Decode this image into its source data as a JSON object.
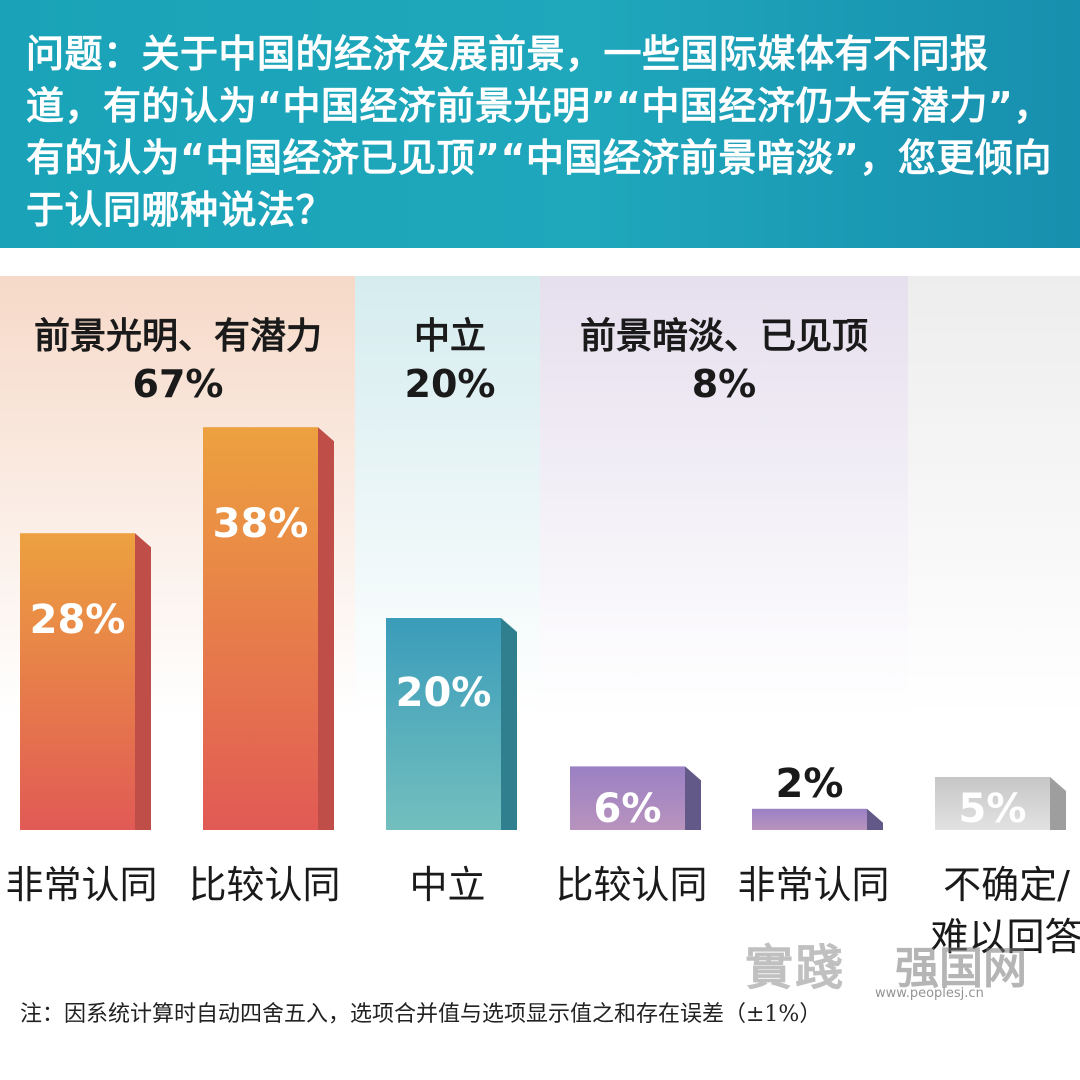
{
  "question": "问题：关于中国的经济发展前景，一些国际媒体有不同报道，有的认为“中国经济前景光明”“中国经济仍大有潜力”，有的认为“中国经济已见顶”“中国经济前景暗淡”，您更倾向于认同哪种说法？",
  "footnote": "注：因系统计算时自动四舍五入，选项合并值与选项显示值之和存在误差（±1%）",
  "watermark": {
    "brand_a": "實踐",
    "brand_b": "强国网",
    "url": "www.peoplesj.cn"
  },
  "colors": {
    "header": "#1aa3b8",
    "positive_bar": "#e8773f",
    "neutral_bar": "#3fa9bf",
    "negative_bar": "#8e7fc2",
    "uncertain_bar": "#cfcfcf",
    "positive_zone": "#f6d9c8",
    "neutral_zone": "#d5ecef",
    "negative_zone": "#e6dfee"
  },
  "chart_data": {
    "type": "bar",
    "categories": [
      "非常认同",
      "比较认同",
      "中立",
      "比较认同",
      "非常认同",
      "不确定/难以回答"
    ],
    "values": [
      28,
      38,
      20,
      6,
      2,
      5
    ],
    "value_labels": [
      "28%",
      "38%",
      "20%",
      "6%",
      "2%",
      "5%"
    ],
    "groups": [
      {
        "label": "前景光明、有潜力",
        "total": "67%"
      },
      {
        "label": "中立",
        "total": "20%"
      },
      {
        "label": "前景暗淡、已见顶",
        "total": "8%"
      }
    ]
  }
}
